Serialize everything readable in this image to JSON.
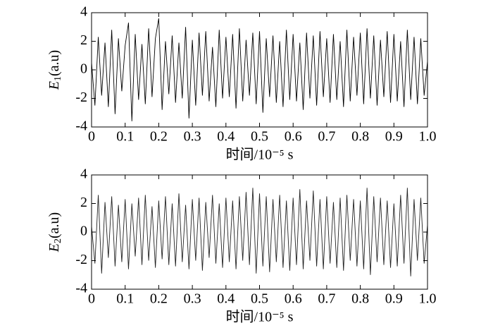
{
  "chart_data": [
    {
      "type": "line",
      "ylabel_symbol": "E",
      "ylabel_subscript": "1",
      "ylabel_unit": "(a.u)",
      "xlabel": "时间/10⁻⁵ s",
      "xlim": [
        0,
        1
      ],
      "ylim": [
        -4,
        4
      ],
      "xticks": [
        0,
        0.1,
        0.2,
        0.3,
        0.4,
        0.5,
        0.6,
        0.7,
        0.8,
        0.9,
        {
          "value": 1,
          "label": "1.0"
        }
      ],
      "yticks": [
        -4,
        -2,
        0,
        2,
        4
      ],
      "x": [
        0,
        0.01,
        0.02,
        0.03,
        0.04,
        0.05,
        0.06,
        0.07,
        0.08,
        0.09,
        0.1,
        0.11,
        0.12,
        0.13,
        0.14,
        0.15,
        0.16,
        0.17,
        0.18,
        0.19,
        0.2,
        0.21,
        0.22,
        0.23,
        0.24,
        0.25,
        0.26,
        0.27,
        0.28,
        0.29,
        0.3,
        0.31,
        0.32,
        0.33,
        0.34,
        0.35,
        0.36,
        0.37,
        0.38,
        0.39,
        0.4,
        0.41,
        0.42,
        0.43,
        0.44,
        0.45,
        0.46,
        0.47,
        0.48,
        0.49,
        0.5,
        0.51,
        0.52,
        0.53,
        0.54,
        0.55,
        0.56,
        0.57,
        0.58,
        0.59,
        0.6,
        0.61,
        0.62,
        0.63,
        0.64,
        0.65,
        0.66,
        0.67,
        0.68,
        0.69,
        0.7,
        0.71,
        0.72,
        0.73,
        0.74,
        0.75,
        0.76,
        0.77,
        0.78,
        0.79,
        0.8,
        0.81,
        0.82,
        0.83,
        0.84,
        0.85,
        0.86,
        0.87,
        0.88,
        0.89,
        0.9,
        0.91,
        0.92,
        0.93,
        0.94,
        0.95,
        0.96,
        0.97,
        0.98,
        0.99,
        1
      ],
      "series": [
        {
          "color": "#000000",
          "values": [
            0.5,
            -2.5,
            2.3,
            -1.8,
            1.9,
            -2.6,
            2.8,
            -3.1,
            2.2,
            -1.5,
            1.7,
            3.3,
            -3.6,
            2.5,
            -2.1,
            1.8,
            -2.4,
            2.9,
            -1.9,
            2.2,
            3.6,
            -2.8,
            2.0,
            -1.7,
            2.4,
            -2.3,
            1.9,
            -2.0,
            3.0,
            -3.4,
            2.1,
            -2.5,
            2.6,
            -1.8,
            2.7,
            -2.2,
            1.6,
            -2.6,
            2.8,
            -2.0,
            2.3,
            -1.9,
            2.5,
            -2.7,
            2.9,
            -2.2,
            2.1,
            -1.8,
            2.6,
            -2.4,
            2.7,
            -3.0,
            2.2,
            -1.9,
            2.4,
            -2.3,
            2.0,
            -2.6,
            2.8,
            -2.1,
            2.5,
            -2.2,
            1.9,
            -2.8,
            2.6,
            -2.0,
            2.4,
            -2.5,
            2.7,
            -1.9,
            2.2,
            -2.3,
            2.5,
            -2.1,
            2.0,
            -2.6,
            2.8,
            -2.2,
            2.3,
            -1.8,
            2.6,
            -2.4,
            2.9,
            -2.0,
            2.4,
            -2.5,
            2.1,
            -1.9,
            2.7,
            -2.3,
            2.5,
            -2.2,
            2.0,
            -2.6,
            2.8,
            -2.1,
            2.3,
            -2.4,
            2.2,
            -1.8,
            0.6
          ]
        }
      ]
    },
    {
      "type": "line",
      "ylabel_symbol": "E",
      "ylabel_subscript": "2",
      "ylabel_unit": "(a.u)",
      "xlabel": "时间/10⁻⁵ s",
      "xlim": [
        0,
        1
      ],
      "ylim": [
        -4,
        4
      ],
      "xticks": [
        0,
        0.1,
        0.2,
        0.3,
        0.4,
        0.5,
        0.6,
        0.7,
        0.8,
        0.9,
        {
          "value": 1,
          "label": "1.0"
        }
      ],
      "yticks": [
        -4,
        -2,
        0,
        2,
        4
      ],
      "x": [
        0,
        0.01,
        0.02,
        0.03,
        0.04,
        0.05,
        0.06,
        0.07,
        0.08,
        0.09,
        0.1,
        0.11,
        0.12,
        0.13,
        0.14,
        0.15,
        0.16,
        0.17,
        0.18,
        0.19,
        0.2,
        0.21,
        0.22,
        0.23,
        0.24,
        0.25,
        0.26,
        0.27,
        0.28,
        0.29,
        0.3,
        0.31,
        0.32,
        0.33,
        0.34,
        0.35,
        0.36,
        0.37,
        0.38,
        0.39,
        0.4,
        0.41,
        0.42,
        0.43,
        0.44,
        0.45,
        0.46,
        0.47,
        0.48,
        0.49,
        0.5,
        0.51,
        0.52,
        0.53,
        0.54,
        0.55,
        0.56,
        0.57,
        0.58,
        0.59,
        0.6,
        0.61,
        0.62,
        0.63,
        0.64,
        0.65,
        0.66,
        0.67,
        0.68,
        0.69,
        0.7,
        0.71,
        0.72,
        0.73,
        0.74,
        0.75,
        0.76,
        0.77,
        0.78,
        0.79,
        0.8,
        0.81,
        0.82,
        0.83,
        0.84,
        0.85,
        0.86,
        0.87,
        0.88,
        0.89,
        0.9,
        0.91,
        0.92,
        0.93,
        0.94,
        0.95,
        0.96,
        0.97,
        0.98,
        0.99,
        1
      ],
      "series": [
        {
          "color": "#222222",
          "values": [
            0.4,
            -2.2,
            2.6,
            -2.9,
            2.1,
            -1.8,
            2.5,
            -2.4,
            1.9,
            -2.1,
            2.3,
            -2.6,
            2.0,
            -1.7,
            2.4,
            -2.3,
            2.6,
            -2.0,
            1.8,
            -2.5,
            2.2,
            -1.9,
            2.5,
            -2.3,
            2.0,
            -2.4,
            2.7,
            -2.1,
            1.9,
            -2.6,
            2.3,
            -2.0,
            2.4,
            -2.7,
            2.1,
            -1.8,
            2.6,
            -2.2,
            2.0,
            -2.5,
            2.4,
            -2.1,
            2.2,
            -2.6,
            2.5,
            -2.0,
            2.8,
            -2.3,
            3.1,
            -2.9,
            2.7,
            -2.4,
            2.5,
            -2.8,
            2.3,
            -2.1,
            2.6,
            -2.5,
            2.2,
            -2.7,
            2.4,
            -2.3,
            3.0,
            -2.6,
            2.2,
            -2.0,
            2.9,
            -2.4,
            2.3,
            -2.6,
            2.5,
            -2.2,
            2.1,
            -2.5,
            2.4,
            -2.7,
            2.6,
            -2.0,
            2.3,
            -2.4,
            2.2,
            -2.6,
            3.1,
            -3.0,
            2.5,
            -2.1,
            2.4,
            -2.3,
            2.2,
            -2.5,
            2.0,
            -2.4,
            2.6,
            -2.2,
            3.1,
            -3.1,
            2.3,
            -2.0,
            2.4,
            -2.2,
            0.5
          ]
        }
      ]
    }
  ]
}
